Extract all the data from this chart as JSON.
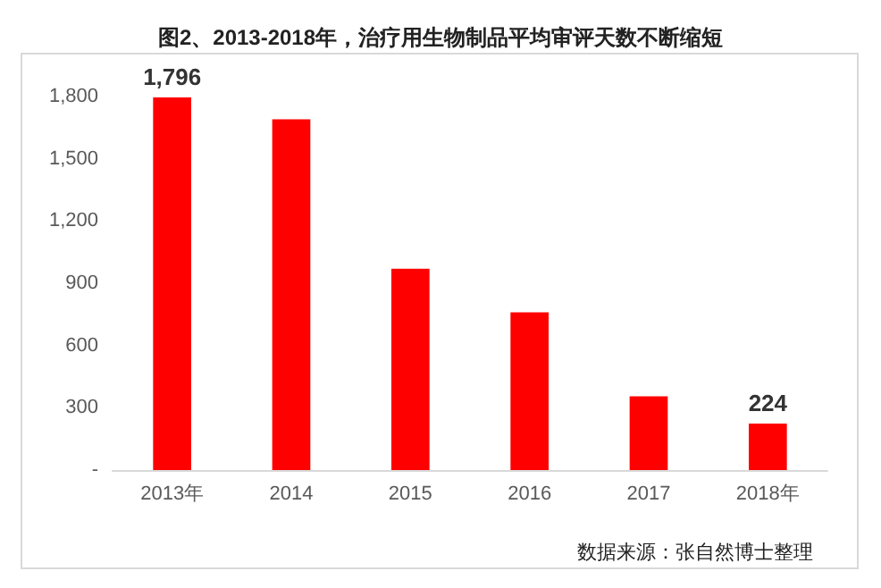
{
  "chart_data": {
    "type": "bar",
    "title": "图2、2013-2018年，治疗用生物制品平均审评天数不断缩短",
    "categories": [
      "2013年",
      "2014",
      "2015",
      "2016",
      "2017",
      "2018年"
    ],
    "values": [
      1796,
      1690,
      970,
      760,
      355,
      224
    ],
    "value_labels": [
      "1,796",
      null,
      null,
      null,
      null,
      "224"
    ],
    "color": "#ff0000",
    "ylim": [
      0,
      1800
    ],
    "yticks": [
      {
        "value": 0,
        "label": "-"
      },
      {
        "value": 300,
        "label": "300"
      },
      {
        "value": 600,
        "label": "600"
      },
      {
        "value": 900,
        "label": "900"
      },
      {
        "value": 1200,
        "label": "1,200"
      },
      {
        "value": 1500,
        "label": "1,500"
      },
      {
        "value": 1800,
        "label": "1,800"
      }
    ],
    "grid": false,
    "annotations": [
      "数据来源：张自然博士整理"
    ]
  }
}
